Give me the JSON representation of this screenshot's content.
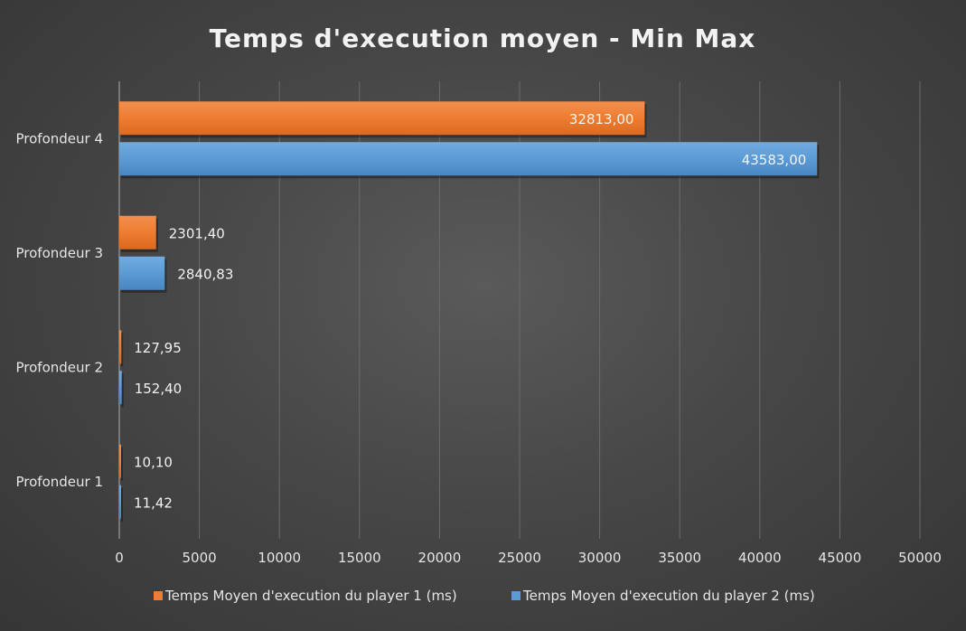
{
  "chart_data": {
    "type": "bar",
    "orientation": "horizontal",
    "title": "Temps d'execution moyen - Min Max",
    "xlabel": "",
    "ylabel": "",
    "categories": [
      "Profondeur 4",
      "Profondeur 3",
      "Profondeur 2",
      "Profondeur 1"
    ],
    "series": [
      {
        "name": "Temps Moyen d'execution du player 1 (ms)",
        "color": "#ed7d31",
        "values": [
          32813.0,
          2301.4,
          127.95,
          10.1
        ],
        "labels": [
          "32813,00",
          "2301,40",
          "127,95",
          "10,10"
        ]
      },
      {
        "name": "Temps Moyen d'execution du player 2 (ms)",
        "color": "#5b9bd5",
        "values": [
          43583.0,
          2840.83,
          152.4,
          11.42
        ],
        "labels": [
          "43583,00",
          "2840,83",
          "152,40",
          "11,42"
        ]
      }
    ],
    "xlim": [
      0,
      50000
    ],
    "xticks": [
      0,
      5000,
      10000,
      15000,
      20000,
      25000,
      30000,
      35000,
      40000,
      45000,
      50000
    ],
    "xtick_labels": [
      "0",
      "5000",
      "10000",
      "15000",
      "20000",
      "25000",
      "30000",
      "35000",
      "40000",
      "45000",
      "50000"
    ],
    "grid": true,
    "legend_position": "bottom"
  }
}
